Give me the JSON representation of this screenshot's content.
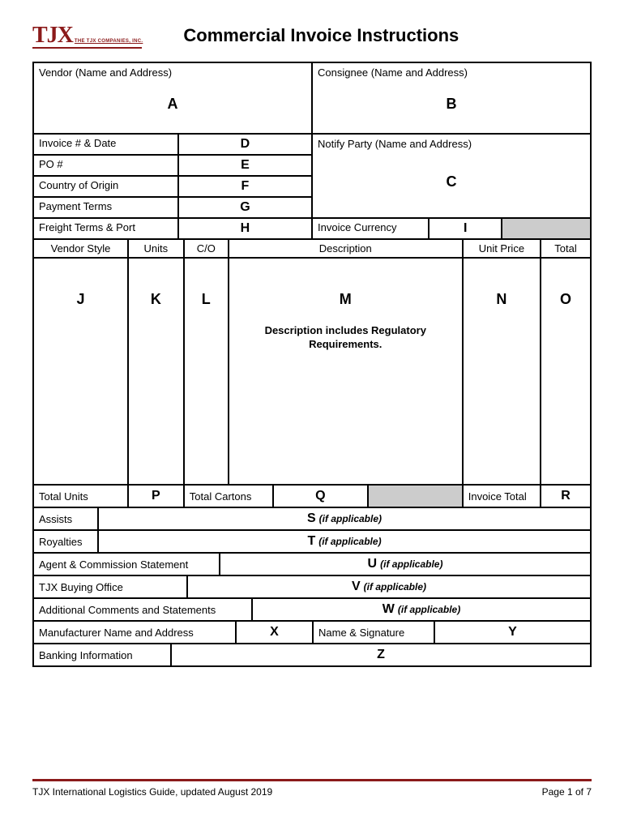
{
  "logo": {
    "main": "TJX",
    "sub": "THE TJX COMPANIES, INC."
  },
  "title": "Commercial Invoice Instructions",
  "colors": {
    "brand": "#8b1a1a",
    "gray_fill": "#cccccc",
    "border": "#000000",
    "bg": "#ffffff"
  },
  "section_top": {
    "vendor": {
      "label": "Vendor (Name and Address)",
      "letter": "A"
    },
    "consignee": {
      "label": "Consignee (Name and Address)",
      "letter": "B"
    }
  },
  "left_rows": [
    {
      "label": "Invoice  #  & Date",
      "letter": "D"
    },
    {
      "label": "PO #",
      "letter": "E"
    },
    {
      "label": "Country of Origin",
      "letter": "F"
    },
    {
      "label": "Payment Terms",
      "letter": "G"
    },
    {
      "label": "Freight Terms & Port",
      "letter": "H"
    }
  ],
  "notify": {
    "label": "Notify Party (Name and Address)",
    "letter": "C"
  },
  "inv_currency": {
    "label": "Invoice Currency",
    "letter": "I"
  },
  "columns": {
    "headers": [
      "Vendor Style",
      "Units",
      "C/O",
      "Description",
      "Unit Price",
      "Total"
    ],
    "letters": [
      "J",
      "K",
      "L",
      "M",
      "N",
      "O"
    ],
    "desc_note": "Description includes Regulatory Requirements."
  },
  "totals": {
    "total_units": {
      "label": "Total Units",
      "letter": "P"
    },
    "total_cartons": {
      "label": "Total Cartons",
      "letter": "Q"
    },
    "invoice_total": {
      "label": "Invoice Total",
      "letter": "R"
    }
  },
  "wide_rows": [
    {
      "label": "Assists",
      "letter": "S",
      "suffix": "(if applicable)",
      "label_w": 80
    },
    {
      "label": "Royalties",
      "letter": "T",
      "suffix": "(if applicable)",
      "label_w": 80
    },
    {
      "label": "Agent  & Commission Statement",
      "letter": "U",
      "suffix": "(if applicable)",
      "label_w": 230
    },
    {
      "label": "TJX Buying Office",
      "letter": "V",
      "suffix": "(if applicable)",
      "label_w": 190
    },
    {
      "label": "Additional Comments and Statements",
      "letter": "W",
      "suffix": "(if applicable)",
      "label_w": 270
    }
  ],
  "bottom": {
    "mfr": {
      "label": "Manufacturer Name and Address",
      "letter": "X"
    },
    "sig": {
      "label": "Name & Signature",
      "letter": "Y"
    },
    "bank": {
      "label": "Banking Information",
      "letter": "Z"
    }
  },
  "footer": {
    "left": "TJX International Logistics Guide, updated August 2019",
    "right": "Page 1 of 7"
  }
}
